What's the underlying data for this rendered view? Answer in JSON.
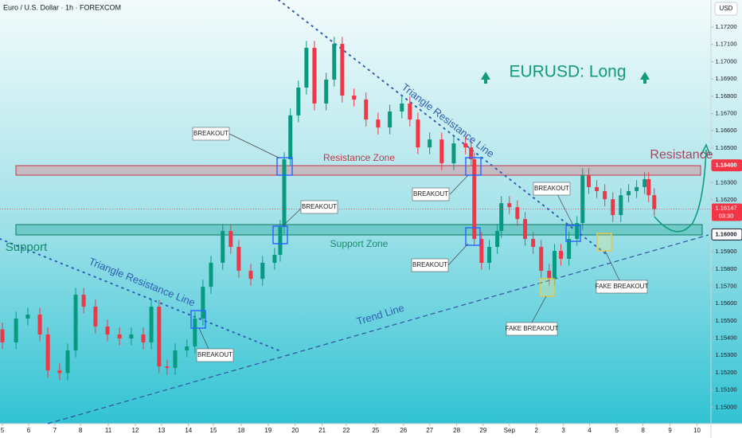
{
  "chart_data": {
    "type": "candlestick",
    "title": "Euro / U.S. Dollar · 1h · FOREXCOM",
    "currency": "USD",
    "up_color": "#089981",
    "down_color": "#f23645",
    "x": [
      0,
      0.51,
      0.95,
      1.4,
      1.7,
      2.14,
      2.44,
      2.74,
      3.04,
      3.48,
      3.93,
      4.38,
      4.82,
      5.27,
      5.57,
      5.86,
      6.16,
      6.46,
      6.9,
      7.2,
      7.5,
      7.8,
      8.24,
      8.54,
      8.84,
      9.29,
      9.73,
      10.18,
      10.39,
      10.54,
      10.77,
      11.07,
      11.37,
      11.67,
      12.11,
      12.41,
      12.71,
      13.15,
      13.6,
      14.05,
      14.49,
      14.94,
      15.24,
      15.54,
      15.98,
      16.43,
      16.88,
      17.32,
      17.53,
      17.65,
      17.92,
      18.21,
      18.51,
      18.66,
      18.96,
      19.26,
      19.55,
      19.85,
      20.15,
      20.45,
      20.65,
      20.89,
      21.19,
      21.49,
      21.7,
      21.93,
      22.23,
      22.53,
      22.83,
      23.13,
      23.42,
      23.72,
      24.02,
      24.17,
      24.38
    ],
    "open": [
      1.1545,
      1.15375,
      1.15513,
      1.15536,
      1.15421,
      1.15213,
      1.15198,
      1.15329,
      1.15651,
      1.15582,
      1.15467,
      1.15421,
      1.15398,
      1.15421,
      1.15375,
      1.15582,
      1.15236,
      1.15227,
      1.15329,
      1.15352,
      1.15513,
      1.15697,
      1.15836,
      1.1602,
      1.15928,
      1.1579,
      1.15743,
      1.15836,
      1.15882,
      1.16043,
      1.16435,
      1.16689,
      1.1685,
      1.1708,
      1.16758,
      1.16896,
      1.17103,
      1.16804,
      1.16781,
      1.16665,
      1.16619,
      1.16712,
      1.16758,
      1.16665,
      1.16504,
      1.1655,
      1.16412,
      1.16527,
      1.16504,
      1.16435,
      1.15974,
      1.15836,
      1.15928,
      1.1602,
      1.16181,
      1.16158,
      1.16089,
      1.15974,
      1.15928,
      1.1579,
      1.15743,
      1.15905,
      1.15859,
      1.15974,
      1.16066,
      1.16343,
      1.16274,
      1.16251,
      1.16204,
      1.16112,
      1.16227,
      1.16251,
      1.16274,
      1.1632,
      1.16227
    ],
    "high": [
      1.1549,
      1.15553,
      1.15576,
      1.15576,
      1.15461,
      1.15253,
      1.15369,
      1.15691,
      1.15691,
      1.15622,
      1.15507,
      1.15461,
      1.15461,
      1.15461,
      1.15622,
      1.15622,
      1.15276,
      1.15369,
      1.15392,
      1.15553,
      1.15737,
      1.15876,
      1.1606,
      1.1606,
      1.15968,
      1.1583,
      1.15876,
      1.15922,
      1.16083,
      1.16475,
      1.16729,
      1.1689,
      1.1712,
      1.1712,
      1.16936,
      1.17143,
      1.17143,
      1.16844,
      1.16821,
      1.16705,
      1.16752,
      1.16798,
      1.16798,
      1.16705,
      1.1659,
      1.1659,
      1.16567,
      1.16567,
      1.16544,
      1.16475,
      1.16014,
      1.15968,
      1.1606,
      1.16221,
      1.16221,
      1.16198,
      1.16129,
      1.16014,
      1.15968,
      1.1583,
      1.15945,
      1.15945,
      1.16014,
      1.16106,
      1.16383,
      1.16383,
      1.16314,
      1.16291,
      1.16244,
      1.16267,
      1.16291,
      1.16314,
      1.1636,
      1.1636,
      1.16267
    ],
    "low": [
      1.15335,
      1.15335,
      1.15473,
      1.15381,
      1.15173,
      1.15158,
      1.15158,
      1.15289,
      1.15542,
      1.15427,
      1.15381,
      1.15358,
      1.15358,
      1.15335,
      1.15335,
      1.15196,
      1.15187,
      1.15187,
      1.15289,
      1.15312,
      1.15473,
      1.15657,
      1.15796,
      1.15888,
      1.1575,
      1.15703,
      1.15703,
      1.15796,
      1.15842,
      1.16003,
      1.16395,
      1.16649,
      1.1681,
      1.16718,
      1.16718,
      1.16856,
      1.16764,
      1.16741,
      1.16625,
      1.16579,
      1.16579,
      1.16672,
      1.16625,
      1.16464,
      1.16464,
      1.16372,
      1.16372,
      1.16464,
      1.16395,
      1.15934,
      1.15796,
      1.15796,
      1.15888,
      1.1598,
      1.16118,
      1.16049,
      1.15934,
      1.15888,
      1.1575,
      1.15703,
      1.15703,
      1.15819,
      1.15819,
      1.15934,
      1.16026,
      1.16234,
      1.16211,
      1.16164,
      1.16072,
      1.16072,
      1.16187,
      1.16211,
      1.16234,
      1.16187,
      1.16107
    ],
    "close": [
      1.15375,
      1.15513,
      1.15536,
      1.15421,
      1.15213,
      1.15198,
      1.15329,
      1.15651,
      1.15582,
      1.15467,
      1.15421,
      1.15398,
      1.15421,
      1.15375,
      1.15582,
      1.15236,
      1.15227,
      1.15329,
      1.15352,
      1.15513,
      1.15697,
      1.15836,
      1.1602,
      1.15928,
      1.1579,
      1.15743,
      1.15836,
      1.15882,
      1.16043,
      1.16435,
      1.16689,
      1.1685,
      1.1708,
      1.16758,
      1.16896,
      1.17103,
      1.16804,
      1.16781,
      1.16665,
      1.16619,
      1.16712,
      1.16758,
      1.16665,
      1.16504,
      1.1655,
      1.16412,
      1.16527,
      1.16504,
      1.16435,
      1.15974,
      1.15836,
      1.15928,
      1.1602,
      1.16181,
      1.16158,
      1.16089,
      1.15974,
      1.15928,
      1.1579,
      1.15743,
      1.15905,
      1.15859,
      1.15974,
      1.16066,
      1.16343,
      1.16274,
      1.16251,
      1.16204,
      1.16112,
      1.16227,
      1.16251,
      1.16274,
      1.1632,
      1.16227,
      1.16147
    ],
    "xlim": [
      -0.09,
      26.5
    ],
    "ylim": [
      1.14914,
      1.17357
    ],
    "xticks": [
      {
        "value": 0,
        "label": "5"
      },
      {
        "value": 0.98,
        "label": "6"
      },
      {
        "value": 1.96,
        "label": "7"
      },
      {
        "value": 2.92,
        "label": "8"
      },
      {
        "value": 3.96,
        "label": "11"
      },
      {
        "value": 4.97,
        "label": "12"
      },
      {
        "value": 5.95,
        "label": "13"
      },
      {
        "value": 6.96,
        "label": "14"
      },
      {
        "value": 7.89,
        "label": "15"
      },
      {
        "value": 8.93,
        "label": "18"
      },
      {
        "value": 9.94,
        "label": "19"
      },
      {
        "value": 10.95,
        "label": "20"
      },
      {
        "value": 11.96,
        "label": "21"
      },
      {
        "value": 12.86,
        "label": "22"
      },
      {
        "value": 13.96,
        "label": "25"
      },
      {
        "value": 15.0,
        "label": "26"
      },
      {
        "value": 15.98,
        "label": "27"
      },
      {
        "value": 16.99,
        "label": "28"
      },
      {
        "value": 17.98,
        "label": "29"
      },
      {
        "value": 18.96,
        "label": "Sep"
      },
      {
        "value": 19.97,
        "label": "2"
      },
      {
        "value": 20.98,
        "label": "3"
      },
      {
        "value": 21.96,
        "label": "4"
      },
      {
        "value": 22.98,
        "label": "5"
      },
      {
        "value": 23.96,
        "label": "8"
      },
      {
        "value": 24.97,
        "label": "9"
      },
      {
        "value": 25.98,
        "label": "10"
      }
    ],
    "yticks": [
      {
        "value": 1.172,
        "label": "1.17200"
      },
      {
        "value": 1.171,
        "label": "1.17100"
      },
      {
        "value": 1.17,
        "label": "1.17000"
      },
      {
        "value": 1.169,
        "label": "1.16900"
      },
      {
        "value": 1.168,
        "label": "1.16800"
      },
      {
        "value": 1.167,
        "label": "1.16700"
      },
      {
        "value": 1.166,
        "label": "1.16600"
      },
      {
        "value": 1.165,
        "label": "1.16500"
      },
      {
        "value": 1.163,
        "label": "1.16300"
      },
      {
        "value": 1.162,
        "label": "1.16200"
      },
      {
        "value": 1.159,
        "label": "1.15900"
      },
      {
        "value": 1.158,
        "label": "1.15800"
      },
      {
        "value": 1.157,
        "label": "1.15700"
      },
      {
        "value": 1.156,
        "label": "1.15600"
      },
      {
        "value": 1.155,
        "label": "1.15500"
      },
      {
        "value": 1.154,
        "label": "1.15400"
      },
      {
        "value": 1.153,
        "label": "1.15300"
      },
      {
        "value": 1.152,
        "label": "1.15200"
      },
      {
        "value": 1.151,
        "label": "1.15100"
      },
      {
        "value": 1.15,
        "label": "1.15000"
      }
    ],
    "price_labels": [
      {
        "value": 1.164,
        "label": "1.16400",
        "color": "#f23645"
      },
      {
        "value": 1.16,
        "label": "1.16000",
        "color": "#ffffff"
      }
    ],
    "last_price": {
      "value": 1.16147,
      "label": "1.16147"
    },
    "countdown": "03:30",
    "annotations": [
      "EURUSD: Long",
      "Resistance Zone",
      "Support Zone",
      "Support",
      "Resistance",
      "Triangle Resistance Line",
      "Triangle Resistance Line",
      "Trend Line",
      "BREAKOUT",
      "BREAKOUT",
      "BREAKOUT",
      "BREAKOUT",
      "BREAKOUT",
      "BREAKOUT",
      "FAKE BREAKOUT",
      "FAKE BREAKOUT"
    ]
  }
}
